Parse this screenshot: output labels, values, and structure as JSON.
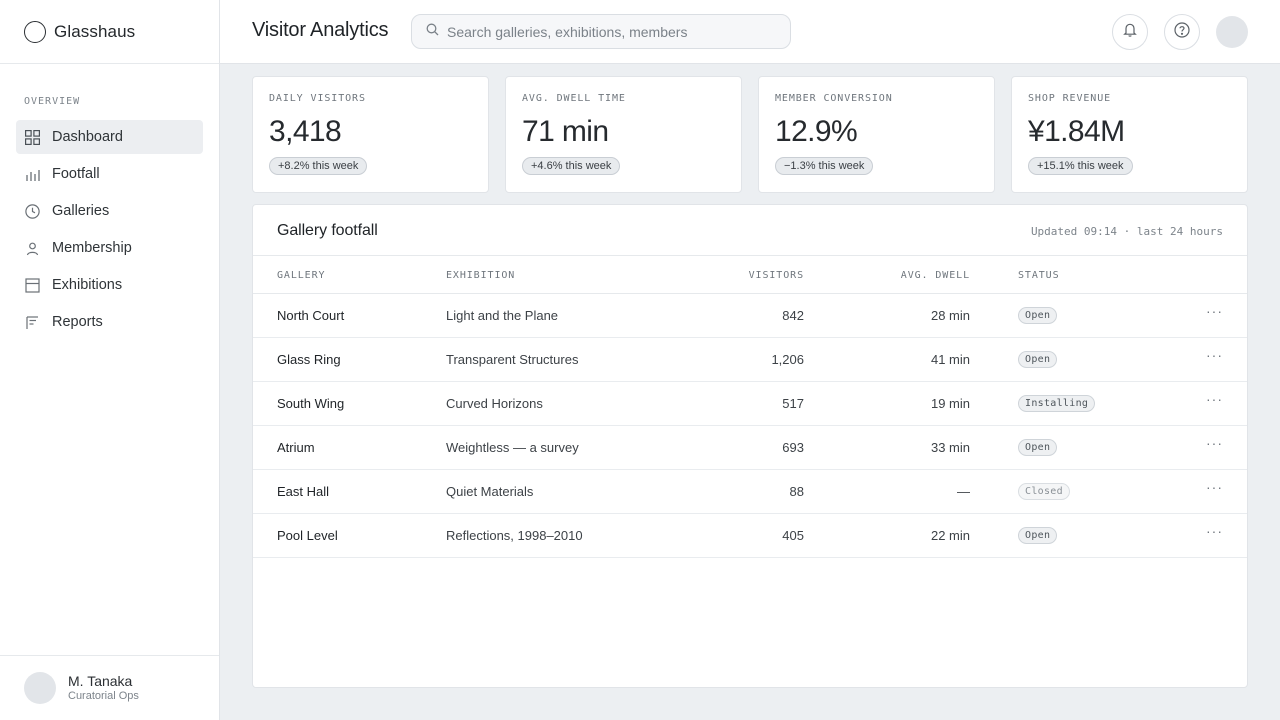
{
  "brand": {
    "name": "Glasshaus"
  },
  "sidebar": {
    "section_label": "OVERVIEW",
    "items": [
      {
        "label": "Dashboard",
        "icon": "grid-icon",
        "active": true
      },
      {
        "label": "Footfall",
        "icon": "bar-chart-icon"
      },
      {
        "label": "Galleries",
        "icon": "clock-icon"
      },
      {
        "label": "Membership",
        "icon": "person-icon"
      },
      {
        "label": "Exhibitions",
        "icon": "layout-icon"
      },
      {
        "label": "Reports",
        "icon": "reports-icon"
      }
    ],
    "user": {
      "name": "M. Tanaka",
      "role": "Curatorial Ops"
    }
  },
  "header": {
    "title": "Visitor Analytics",
    "search_placeholder": "Search galleries, exhibitions, members",
    "search_value": ""
  },
  "kpis": [
    {
      "label": "DAILY VISITORS",
      "value": "3,418",
      "delta": "+8.2% this week"
    },
    {
      "label": "AVG. DWELL TIME",
      "value": "71 min",
      "delta": "+4.6% this week"
    },
    {
      "label": "MEMBER CONVERSION",
      "value": "12.9%",
      "delta": "−1.3% this week"
    },
    {
      "label": "SHOP REVENUE",
      "value": "¥1.84M",
      "delta": "+15.1% this week"
    }
  ],
  "footfall": {
    "title": "Gallery footfall",
    "meta": "Updated 09:14 · last 24 hours",
    "columns": {
      "gallery": "GALLERY",
      "exhibition": "EXHIBITION",
      "visitors": "VISITORS",
      "dwell": "AVG. DWELL",
      "status": "STATUS"
    },
    "more_label": "···",
    "rows": [
      {
        "gallery": "North Court",
        "exhibition": "Light and the Plane",
        "visitors": "842",
        "dwell": "28 min",
        "status": "Open"
      },
      {
        "gallery": "Glass Ring",
        "exhibition": "Transparent Structures",
        "visitors": "1,206",
        "dwell": "41 min",
        "status": "Open"
      },
      {
        "gallery": "South Wing",
        "exhibition": "Curved Horizons",
        "visitors": "517",
        "dwell": "19 min",
        "status": "Installing"
      },
      {
        "gallery": "Atrium",
        "exhibition": "Weightless — a survey",
        "visitors": "693",
        "dwell": "33 min",
        "status": "Open"
      },
      {
        "gallery": "East Hall",
        "exhibition": "Quiet Materials",
        "visitors": "88",
        "dwell": "—",
        "status": "Closed"
      },
      {
        "gallery": "Pool Level",
        "exhibition": "Reflections, 1998–2010",
        "visitors": "405",
        "dwell": "22 min",
        "status": "Open"
      }
    ]
  }
}
